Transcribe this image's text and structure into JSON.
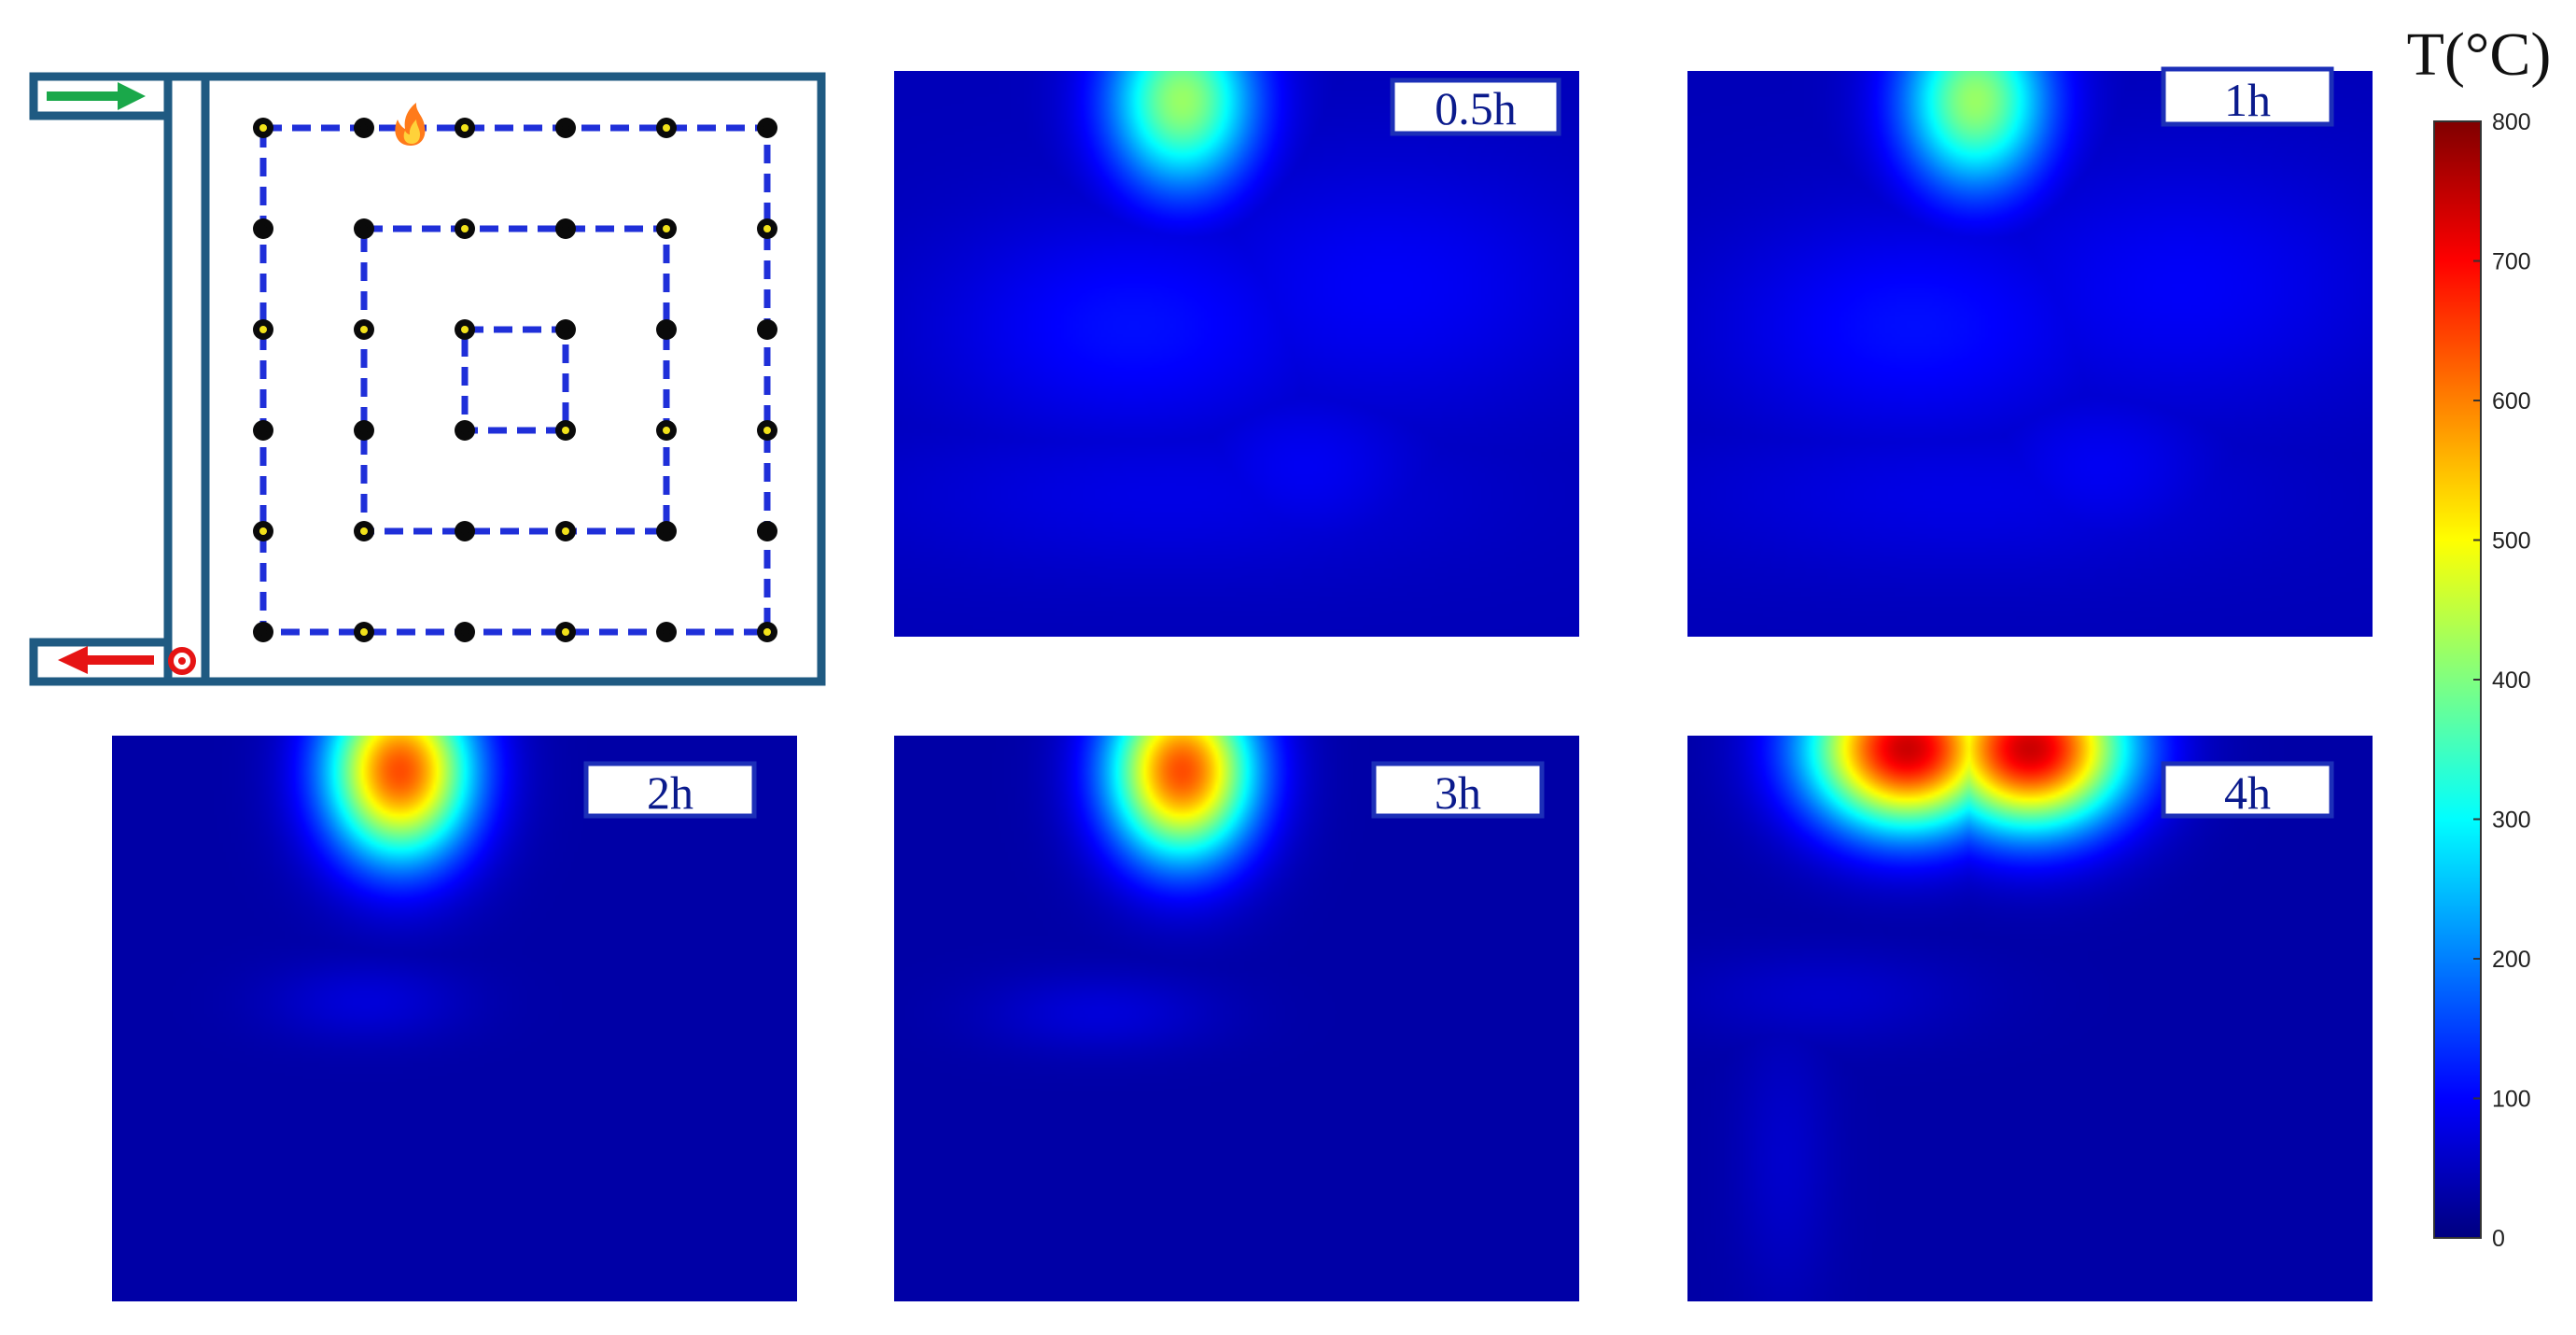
{
  "chart_data": [
    {
      "type": "diagram",
      "panel": "layout",
      "description": "Room plan with measurement points along three concentric rectangles (outer 6x6, middle 4x4, inner 2x2), fire source on top row, inlet (green arrow) top-left and outlet (red arrow) bottom-left.",
      "outer_grid": 6,
      "middle_grid": 4,
      "inner_grid": 2,
      "fire_icon": "flame-icon",
      "inlet_icon": "arrow-right-icon",
      "outlet_icon": "arrow-left-icon",
      "inlet_color": "#1aa84a",
      "outlet_color": "#e61414",
      "path_color": "#1f2fd9",
      "wall_color": "#1f5a82"
    },
    {
      "type": "heatmap",
      "label": "0.5h",
      "hotspots": [
        {
          "x": 0.42,
          "y": 0.05,
          "peak": 420,
          "sx": 0.075,
          "sy": 0.11
        },
        {
          "x": 0.35,
          "y": 0.45,
          "peak": 110,
          "sx": 0.2,
          "sy": 0.14
        },
        {
          "x": 0.72,
          "y": 0.38,
          "peak": 95,
          "sx": 0.22,
          "sy": 0.16
        },
        {
          "x": 0.4,
          "y": 0.75,
          "peak": 80,
          "sx": 0.3,
          "sy": 0.1
        },
        {
          "x": 0.6,
          "y": 0.7,
          "peak": 90,
          "sx": 0.12,
          "sy": 0.1
        }
      ],
      "background": 45
    },
    {
      "type": "heatmap",
      "label": "1h",
      "hotspots": [
        {
          "x": 0.42,
          "y": 0.05,
          "peak": 420,
          "sx": 0.075,
          "sy": 0.11
        },
        {
          "x": 0.33,
          "y": 0.45,
          "peak": 110,
          "sx": 0.2,
          "sy": 0.14
        },
        {
          "x": 0.72,
          "y": 0.38,
          "peak": 95,
          "sx": 0.22,
          "sy": 0.16
        },
        {
          "x": 0.4,
          "y": 0.75,
          "peak": 80,
          "sx": 0.3,
          "sy": 0.1
        },
        {
          "x": 0.6,
          "y": 0.7,
          "peak": 90,
          "sx": 0.12,
          "sy": 0.1
        }
      ],
      "background": 45
    },
    {
      "type": "heatmap",
      "label": "2h",
      "hotspots": [
        {
          "x": 0.42,
          "y": 0.06,
          "peak": 640,
          "sx": 0.075,
          "sy": 0.11
        },
        {
          "x": 0.37,
          "y": 0.47,
          "peak": 70,
          "sx": 0.1,
          "sy": 0.05
        }
      ],
      "background": 30
    },
    {
      "type": "heatmap",
      "label": "3h",
      "hotspots": [
        {
          "x": 0.42,
          "y": 0.06,
          "peak": 640,
          "sx": 0.075,
          "sy": 0.11
        },
        {
          "x": 0.3,
          "y": 0.49,
          "peak": 70,
          "sx": 0.12,
          "sy": 0.05
        }
      ],
      "background": 30
    },
    {
      "type": "heatmap",
      "label": "4h",
      "hotspots": [
        {
          "x": 0.32,
          "y": 0.02,
          "peak": 740,
          "sx": 0.1,
          "sy": 0.1
        },
        {
          "x": 0.5,
          "y": 0.02,
          "peak": 740,
          "sx": 0.1,
          "sy": 0.1
        },
        {
          "x": 0.2,
          "y": 0.46,
          "peak": 60,
          "sx": 0.15,
          "sy": 0.06
        },
        {
          "x": 0.14,
          "y": 0.75,
          "peak": 60,
          "sx": 0.05,
          "sy": 0.18
        }
      ],
      "background": 30
    },
    {
      "type": "colorbar",
      "title": "T(°C)",
      "range": [
        0,
        800
      ],
      "ticks": [
        0,
        100,
        200,
        300,
        400,
        500,
        600,
        700,
        800
      ],
      "colormap": "jet"
    }
  ]
}
